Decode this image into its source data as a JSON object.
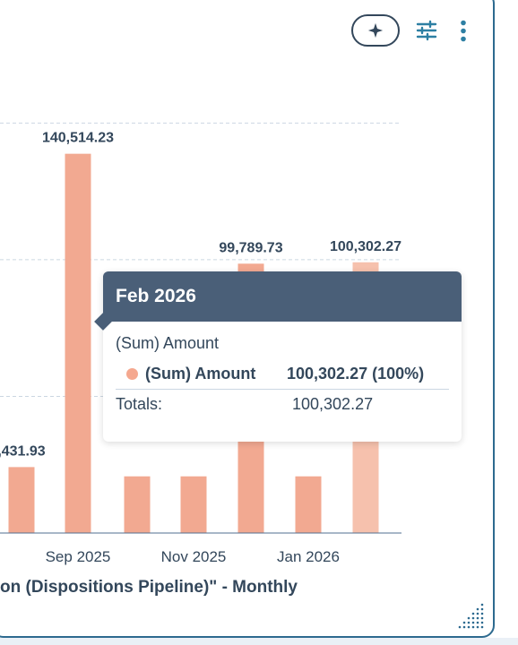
{
  "toolbar": {
    "ai_icon": "sparkle-icon",
    "filter_icon": "sliders-icon",
    "more_icon": "vertical-dots-icon"
  },
  "colors": {
    "bar": "#f2a991",
    "bar_highlight": "#f6c1ad",
    "grid": "#cbd6e2",
    "tooltip_header": "#4a5f78",
    "border": "#2d6a8f"
  },
  "chart_data": {
    "type": "bar",
    "categories": [
      "",
      "",
      "Sep 2025",
      "",
      "Nov 2025",
      "",
      "Jan 2026",
      "Feb 2026"
    ],
    "tick_labels": [
      "Sep 2025",
      "Nov 2025",
      "Jan 2026"
    ],
    "series": [
      {
        "name": "(Sum) Amount",
        "values": [
          null,
          24431.93,
          140514.23,
          21000,
          21000,
          99789.73,
          21000,
          100302.27
        ]
      }
    ],
    "data_labels": [
      "",
      ",431.93",
      "140,514.23",
      "",
      "",
      "99,789.73",
      "",
      "100,302.27"
    ],
    "highlighted_category": "Feb 2026",
    "title": "on (Dispositions Pipeline)\" - Monthly",
    "ylim": [
      0,
      155000
    ],
    "grid": true
  },
  "tooltip": {
    "title": "Feb 2026",
    "series_title": "(Sum) Amount",
    "row_label": "(Sum) Amount",
    "row_value": "100,302.27 (100%)",
    "total_label": "Totals:",
    "total_value": "100,302.27"
  }
}
